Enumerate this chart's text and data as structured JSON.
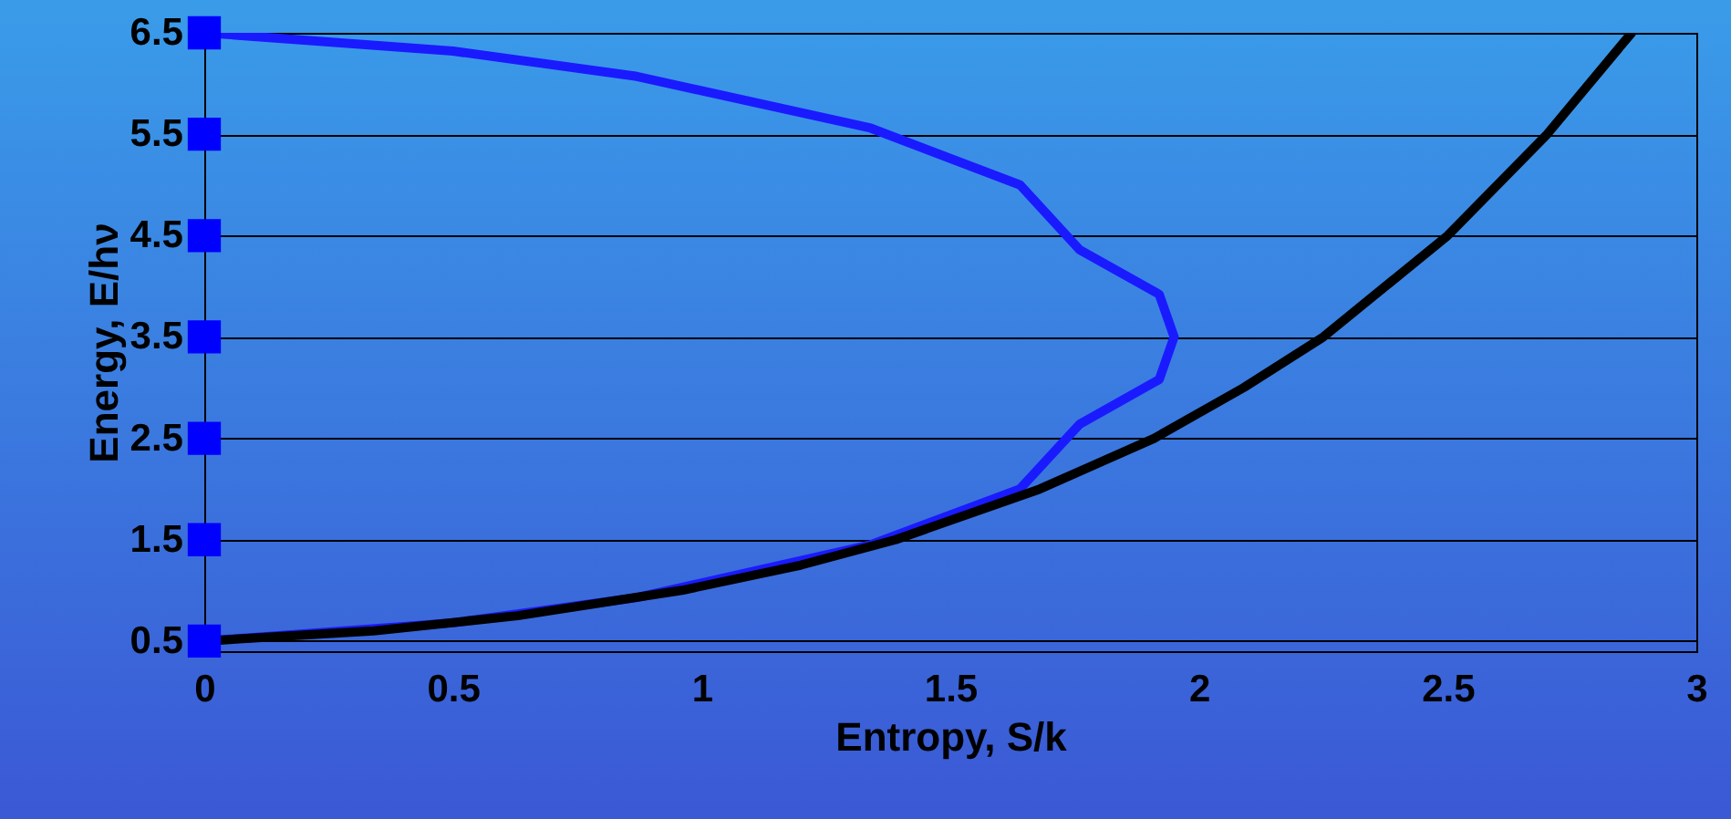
{
  "chart_data": {
    "type": "line",
    "xlabel": "Entropy, S/k",
    "ylabel": "Energy, E/hν",
    "xlim": [
      0,
      3
    ],
    "xticks": [
      0,
      0.5,
      1,
      1.5,
      2,
      2.5,
      3
    ],
    "ylim": [
      0.4,
      6.5
    ],
    "yticks": [
      0.5,
      1.5,
      2.5,
      3.5,
      4.5,
      5.5,
      6.5
    ],
    "grid": "y",
    "line_style": "solid",
    "series": [
      {
        "color": "#1a1aff",
        "x": [
          0,
          0.5,
          0.87,
          1.34,
          1.64,
          1.76,
          1.92,
          1.95,
          1.92,
          1.76,
          1.64,
          1.34,
          0.87,
          0.5,
          0
        ],
        "values": [
          0.5,
          0.68,
          0.93,
          1.45,
          2.0,
          2.64,
          3.08,
          3.5,
          3.92,
          4.36,
          5.0,
          5.56,
          6.07,
          6.32,
          6.5
        ]
      },
      {
        "color": "#000000",
        "x": [
          0,
          0.34,
          0.63,
          0.96,
          1.2,
          1.39,
          1.68,
          1.91,
          2.09,
          2.25,
          2.5,
          2.7,
          2.87
        ],
        "values": [
          0.5,
          0.6,
          0.75,
          1.0,
          1.25,
          1.5,
          2.0,
          2.5,
          3.0,
          3.5,
          4.5,
          5.5,
          6.5
        ]
      },
      {
        "type": "scatter",
        "marker": "square",
        "color": "#0000ff",
        "x": [
          0,
          0,
          0,
          0,
          0,
          0,
          0
        ],
        "values": [
          0.5,
          1.5,
          2.5,
          3.5,
          4.5,
          5.5,
          6.5
        ]
      }
    ]
  }
}
